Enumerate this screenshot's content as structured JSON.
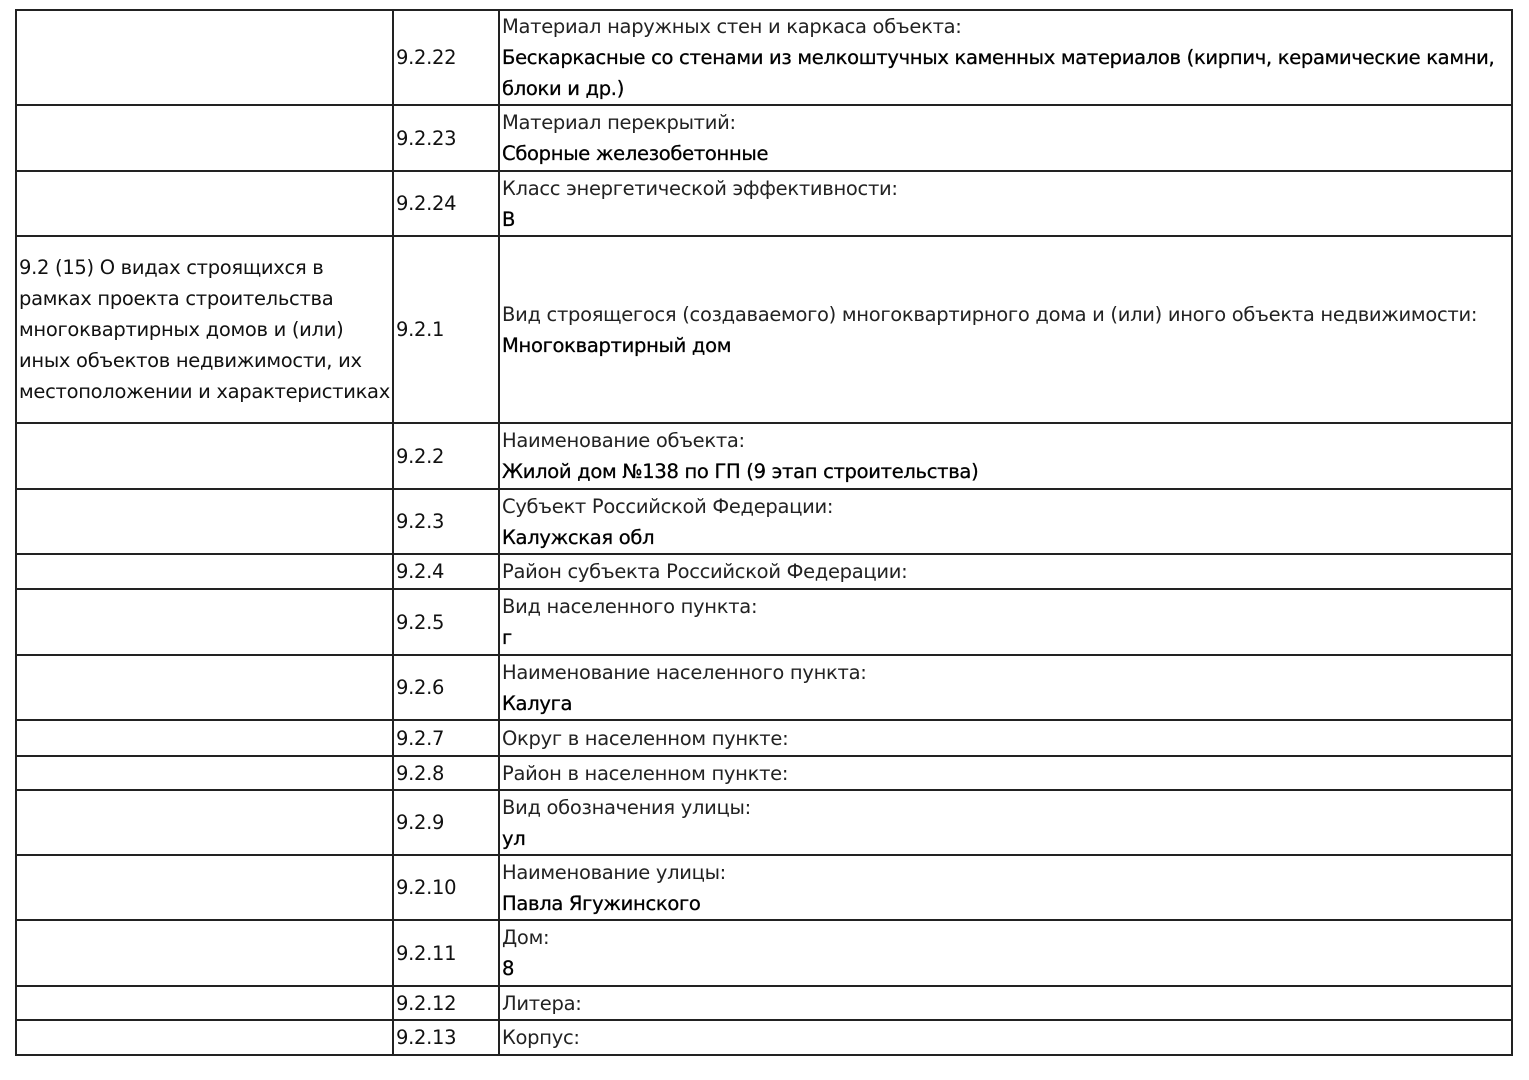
{
  "rows": [
    {
      "section": "",
      "code": "9.2.22",
      "label": "Материал наружных стен и каркаса объекта:",
      "value": "Бескаркасные со стенами из мелкоштучных каменных материалов (кирпич, керамические камни, блоки и др.)",
      "h": 95
    },
    {
      "section": "",
      "code": "9.2.23",
      "label": "Материал перекрытий:",
      "value": "Сборные железобетонные",
      "h": 66
    },
    {
      "section": "",
      "code": "9.2.24",
      "label": "Класс энергетической эффективности:",
      "value": "B",
      "h": 65
    },
    {
      "section": "9.2 (15) О видах строящихся в рамках проекта строительства многоквартирных домов и (или) иных объектов недвижимости, их местоположении и характеристиках",
      "code": "9.2.1",
      "label": "Вид строящегося (создаваемого) многоквартирного дома и (или) иного объекта недвижимости:",
      "value": "Многоквартирный дом",
      "h": 187
    },
    {
      "section": "",
      "code": "9.2.2",
      "label": "Наименование объекта:",
      "value": "Жилой дом №138 по ГП (9 этап строительства)",
      "h": 66
    },
    {
      "section": "",
      "code": "9.2.3",
      "label": "Субъект Российской Федерации:",
      "value": "Калужская обл",
      "h": 65
    },
    {
      "section": "",
      "code": "9.2.4",
      "label": "Район субъекта Российской Федерации:",
      "value": "",
      "h": 35
    },
    {
      "section": "",
      "code": "9.2.5",
      "label": "Вид населенного пункта:",
      "value": "г",
      "h": 66
    },
    {
      "section": "",
      "code": "9.2.6",
      "label": "Наименование населенного пункта:",
      "value": "Калуга",
      "h": 65
    },
    {
      "section": "",
      "code": "9.2.7",
      "label": "Округ в населенном пункте:",
      "value": "",
      "h": 36
    },
    {
      "section": "",
      "code": "9.2.8",
      "label": "Район в населенном пункте:",
      "value": "",
      "h": 34
    },
    {
      "section": "",
      "code": "9.2.9",
      "label": "Вид обозначения улицы:",
      "value": "ул",
      "h": 65
    },
    {
      "section": "",
      "code": "9.2.10",
      "label": "Наименование улицы:",
      "value": "Павла Ягужинского",
      "h": 65
    },
    {
      "section": "",
      "code": "9.2.11",
      "label": "Дом:",
      "value": "8",
      "h": 66
    },
    {
      "section": "",
      "code": "9.2.12",
      "label": "Литера:",
      "value": "",
      "h": 34
    },
    {
      "section": "",
      "code": "9.2.13",
      "label": "Корпус:",
      "value": "",
      "h": 35
    }
  ]
}
